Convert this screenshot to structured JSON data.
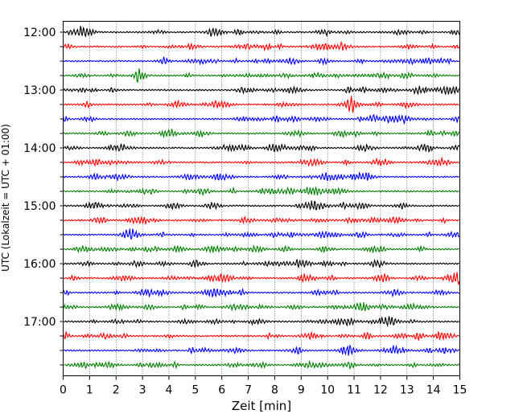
{
  "chart_data": {
    "type": "line",
    "title": "",
    "xlabel": "Zeit  [min]",
    "ylabel": "UTC (Lokalzeit = UTC + 01:00)",
    "xlim": [
      0,
      15
    ],
    "x_ticks": [
      0,
      1,
      2,
      3,
      4,
      5,
      6,
      7,
      8,
      9,
      10,
      11,
      12,
      13,
      14,
      15
    ],
    "y_tick_labels": [
      "12:00",
      "13:00",
      "14:00",
      "15:00",
      "16:00",
      "17:00"
    ],
    "grid": "vertical dotted lines at each minute",
    "trace_minutes_per_line": 15,
    "start_time": "12:00",
    "trace_count": 24,
    "trace_colors": [
      "#000000",
      "#ff0000",
      "#0000ff",
      "#008000"
    ],
    "series": [
      {
        "start": "12:00"
      },
      {
        "start": "12:15"
      },
      {
        "start": "12:30"
      },
      {
        "start": "12:45"
      },
      {
        "start": "13:00"
      },
      {
        "start": "13:15"
      },
      {
        "start": "13:30"
      },
      {
        "start": "13:45"
      },
      {
        "start": "14:00"
      },
      {
        "start": "14:15"
      },
      {
        "start": "14:30"
      },
      {
        "start": "14:45"
      },
      {
        "start": "15:00"
      },
      {
        "start": "15:15"
      },
      {
        "start": "15:30"
      },
      {
        "start": "15:45"
      },
      {
        "start": "16:00"
      },
      {
        "start": "16:15"
      },
      {
        "start": "16:30"
      },
      {
        "start": "16:45"
      },
      {
        "start": "17:00"
      },
      {
        "start": "17:15"
      },
      {
        "start": "17:30"
      },
      {
        "start": "17:45"
      }
    ]
  }
}
